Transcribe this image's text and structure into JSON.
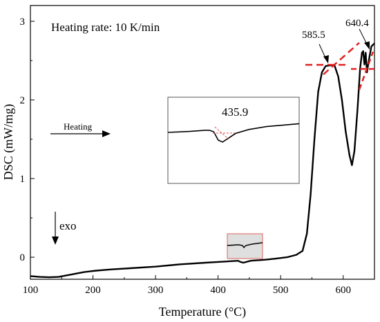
{
  "chart_data": {
    "type": "line",
    "title": "",
    "xlabel": "Temperature (°C)",
    "ylabel": "DSC (mW/mg)",
    "xlim": [
      100,
      650
    ],
    "ylim": [
      -0.28,
      3.2
    ],
    "x_ticks": [
      100,
      200,
      300,
      400,
      500,
      600
    ],
    "y_ticks": [
      0,
      1,
      2,
      3
    ],
    "grid": false,
    "legend": "none",
    "annotations": {
      "heating_rate": "Heating rate: 10 K/min",
      "heating_arrow": "Heating",
      "exo": "exo",
      "peak_onset_1": "585.5",
      "peak_onset_2": "640.4",
      "inset_onset": "435.9"
    },
    "series": [
      {
        "color": "#000000",
        "points": [
          [
            100,
            -0.24
          ],
          [
            115,
            -0.25
          ],
          [
            130,
            -0.255
          ],
          [
            145,
            -0.25
          ],
          [
            165,
            -0.22
          ],
          [
            185,
            -0.19
          ],
          [
            205,
            -0.17
          ],
          [
            230,
            -0.155
          ],
          [
            260,
            -0.14
          ],
          [
            300,
            -0.12
          ],
          [
            340,
            -0.09
          ],
          [
            380,
            -0.07
          ],
          [
            400,
            -0.06
          ],
          [
            420,
            -0.05
          ],
          [
            432,
            -0.045
          ],
          [
            436,
            -0.06
          ],
          [
            440,
            -0.07
          ],
          [
            445,
            -0.06
          ],
          [
            452,
            -0.045
          ],
          [
            470,
            -0.035
          ],
          [
            490,
            -0.02
          ],
          [
            510,
            0.0
          ],
          [
            525,
            0.03
          ],
          [
            535,
            0.08
          ],
          [
            542,
            0.3
          ],
          [
            548,
            0.8
          ],
          [
            554,
            1.5
          ],
          [
            560,
            2.1
          ],
          [
            566,
            2.35
          ],
          [
            572,
            2.43
          ],
          [
            580,
            2.44
          ],
          [
            586,
            2.44
          ],
          [
            592,
            2.3
          ],
          [
            598,
            2.0
          ],
          [
            604,
            1.6
          ],
          [
            610,
            1.3
          ],
          [
            614,
            1.17
          ],
          [
            618,
            1.35
          ],
          [
            623,
            1.9
          ],
          [
            627,
            2.4
          ],
          [
            630,
            2.6
          ],
          [
            632,
            2.62
          ],
          [
            634,
            2.45
          ],
          [
            636,
            2.6
          ],
          [
            638,
            2.35
          ],
          [
            640,
            2.45
          ],
          [
            642,
            2.55
          ],
          [
            645,
            2.68
          ],
          [
            650,
            2.72
          ]
        ]
      }
    ],
    "inset": {
      "x_range": [
        415,
        475
      ],
      "points": [
        [
          415,
          0.0
        ],
        [
          425,
          0.1
        ],
        [
          432,
          0.22
        ],
        [
          434,
          0.22
        ],
        [
          436,
          0.05
        ],
        [
          438,
          -0.8
        ],
        [
          440,
          -1.0
        ],
        [
          442,
          -0.7
        ],
        [
          446,
          -0.1
        ],
        [
          452,
          0.3
        ],
        [
          460,
          0.6
        ],
        [
          470,
          0.8
        ],
        [
          475,
          0.9
        ]
      ]
    }
  }
}
